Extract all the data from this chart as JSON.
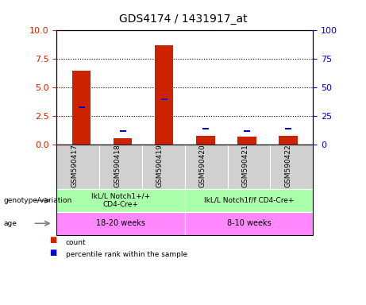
{
  "title": "GDS4174 / 1431917_at",
  "samples": [
    "GSM590417",
    "GSM590418",
    "GSM590419",
    "GSM590420",
    "GSM590421",
    "GSM590422"
  ],
  "red_values": [
    6.5,
    0.6,
    8.7,
    0.8,
    0.7,
    0.8
  ],
  "blue_values": [
    33,
    12,
    40,
    14,
    12,
    14
  ],
  "ylim_left": [
    0,
    10
  ],
  "ylim_right": [
    0,
    100
  ],
  "yticks_left": [
    0,
    2.5,
    5,
    7.5,
    10
  ],
  "yticks_right": [
    0,
    25,
    50,
    75,
    100
  ],
  "left_color": "#cc2200",
  "right_color": "#0000cc",
  "group1_label": "IkL/L Notch1+/+\nCD4-Cre+",
  "group2_label": "IkL/L Notch1f/f CD4-Cre+",
  "age1_label": "18-20 weeks",
  "age2_label": "8-10 weeks",
  "genotype_label": "genotype/variation",
  "age_label": "age",
  "legend_red": "count",
  "legend_blue": "percentile rank within the sample",
  "group1_color": "#aaffaa",
  "age_color": "#ff88ff",
  "sample_bg_color": "#d0d0d0"
}
